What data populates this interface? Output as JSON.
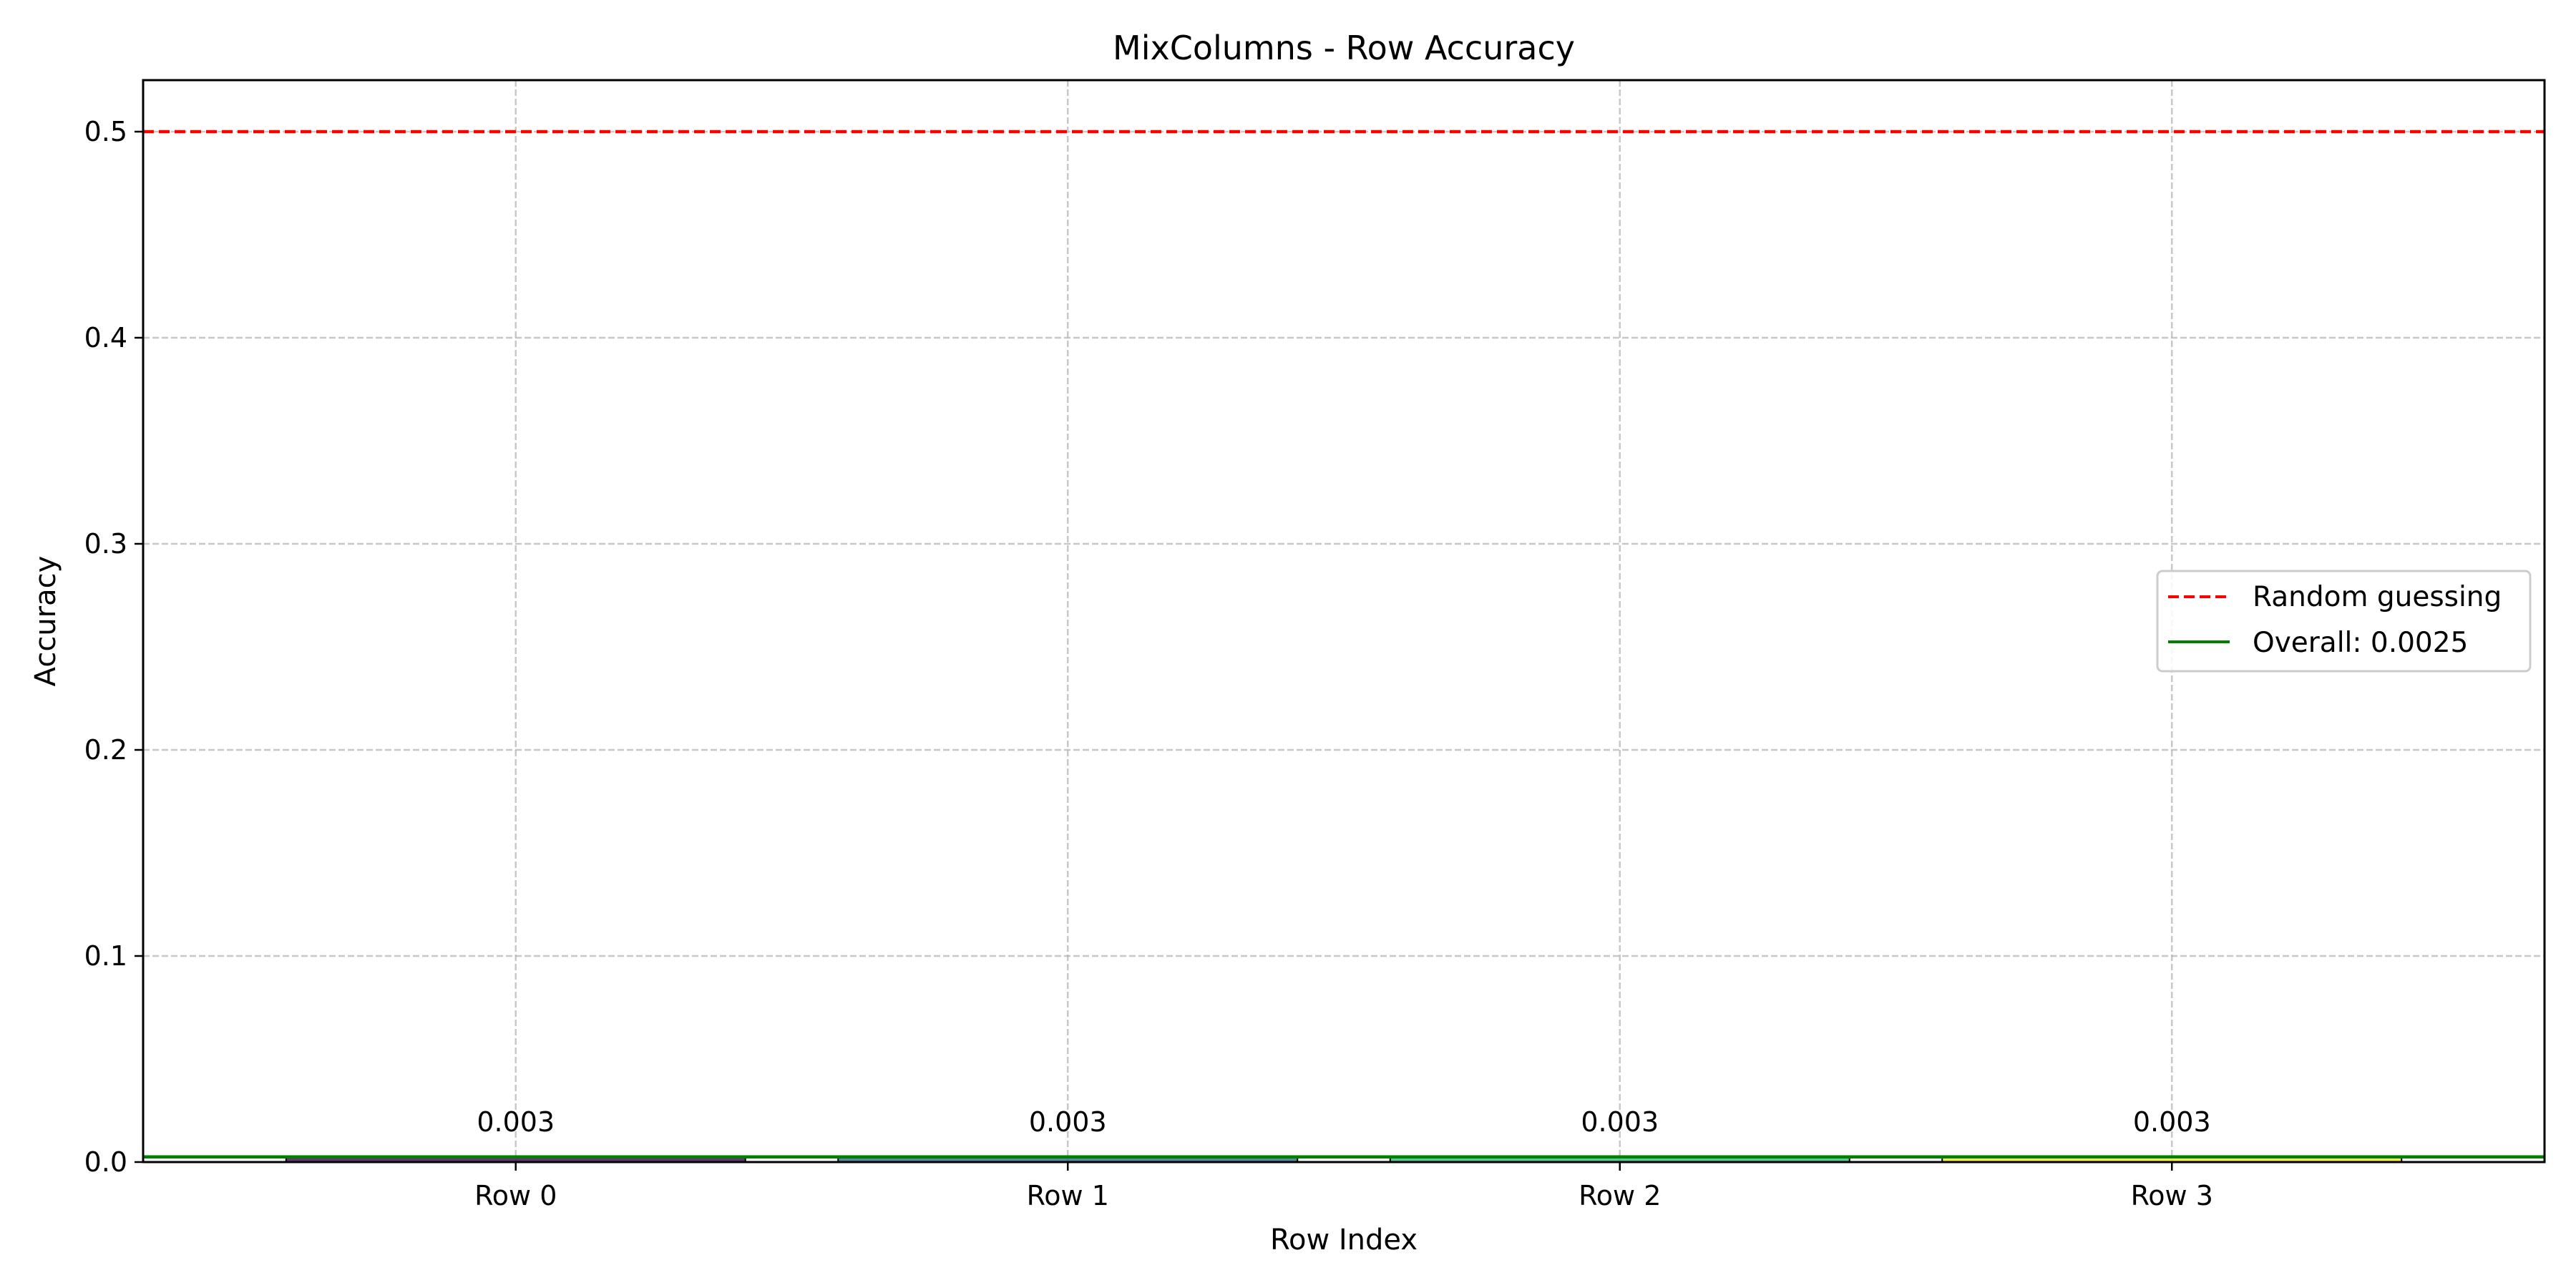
{
  "chart_data": {
    "type": "bar",
    "title": "MixColumns - Row Accuracy",
    "xlabel": "Row Index",
    "ylabel": "Accuracy",
    "categories": [
      "Row 0",
      "Row 1",
      "Row 2",
      "Row 3"
    ],
    "values": [
      0.0025,
      0.0025,
      0.0025,
      0.0025
    ],
    "data_labels": [
      "0.003",
      "0.003",
      "0.003",
      "0.003"
    ],
    "bar_colors": [
      "#440154",
      "#31688e",
      "#35b779",
      "#fde725"
    ],
    "ylim": [
      0,
      0.525
    ],
    "yticks": [
      0.0,
      0.1,
      0.2,
      0.3,
      0.4,
      0.5
    ],
    "ytick_labels": [
      "0.0",
      "0.1",
      "0.2",
      "0.3",
      "0.4",
      "0.5"
    ],
    "grid": true,
    "reference_lines": [
      {
        "label": "Random guessing",
        "value": 0.5,
        "color": "#ff0000",
        "style": "dashed"
      },
      {
        "label": "Overall: 0.0025",
        "value": 0.0025,
        "color": "#008000",
        "style": "solid"
      }
    ],
    "legend_position": "center-right"
  }
}
